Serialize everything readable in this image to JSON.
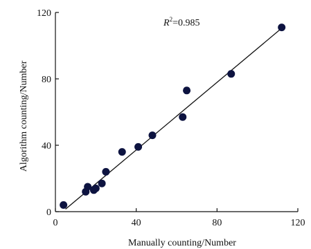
{
  "chart_data": {
    "type": "scatter",
    "title": "",
    "xlabel": "Manually counting/Number",
    "ylabel": "Algorithm counting/Number",
    "xlim": [
      0,
      120
    ],
    "ylim": [
      0,
      120
    ],
    "xticks": [
      "0",
      "40",
      "80",
      "120"
    ],
    "yticks": [
      "0",
      "40",
      "80",
      "120"
    ],
    "grid": false,
    "legend": "none",
    "points": [
      {
        "x": 4,
        "y": 4
      },
      {
        "x": 15,
        "y": 12
      },
      {
        "x": 16,
        "y": 15
      },
      {
        "x": 19,
        "y": 13
      },
      {
        "x": 20,
        "y": 14
      },
      {
        "x": 23,
        "y": 17
      },
      {
        "x": 25,
        "y": 24
      },
      {
        "x": 33,
        "y": 36
      },
      {
        "x": 41,
        "y": 39
      },
      {
        "x": 48,
        "y": 46
      },
      {
        "x": 63,
        "y": 57
      },
      {
        "x": 65,
        "y": 73
      },
      {
        "x": 87,
        "y": 83
      },
      {
        "x": 112,
        "y": 111
      }
    ],
    "fit_line": {
      "x": [
        5,
        112
      ],
      "y": [
        1.5,
        110.5
      ]
    },
    "annotation": {
      "r2_label": "R",
      "r2_sup": "2",
      "r2_value": "=0.985"
    },
    "colors": {
      "marker": "#0d1340",
      "line": "#111111",
      "axis": "#111111"
    }
  }
}
